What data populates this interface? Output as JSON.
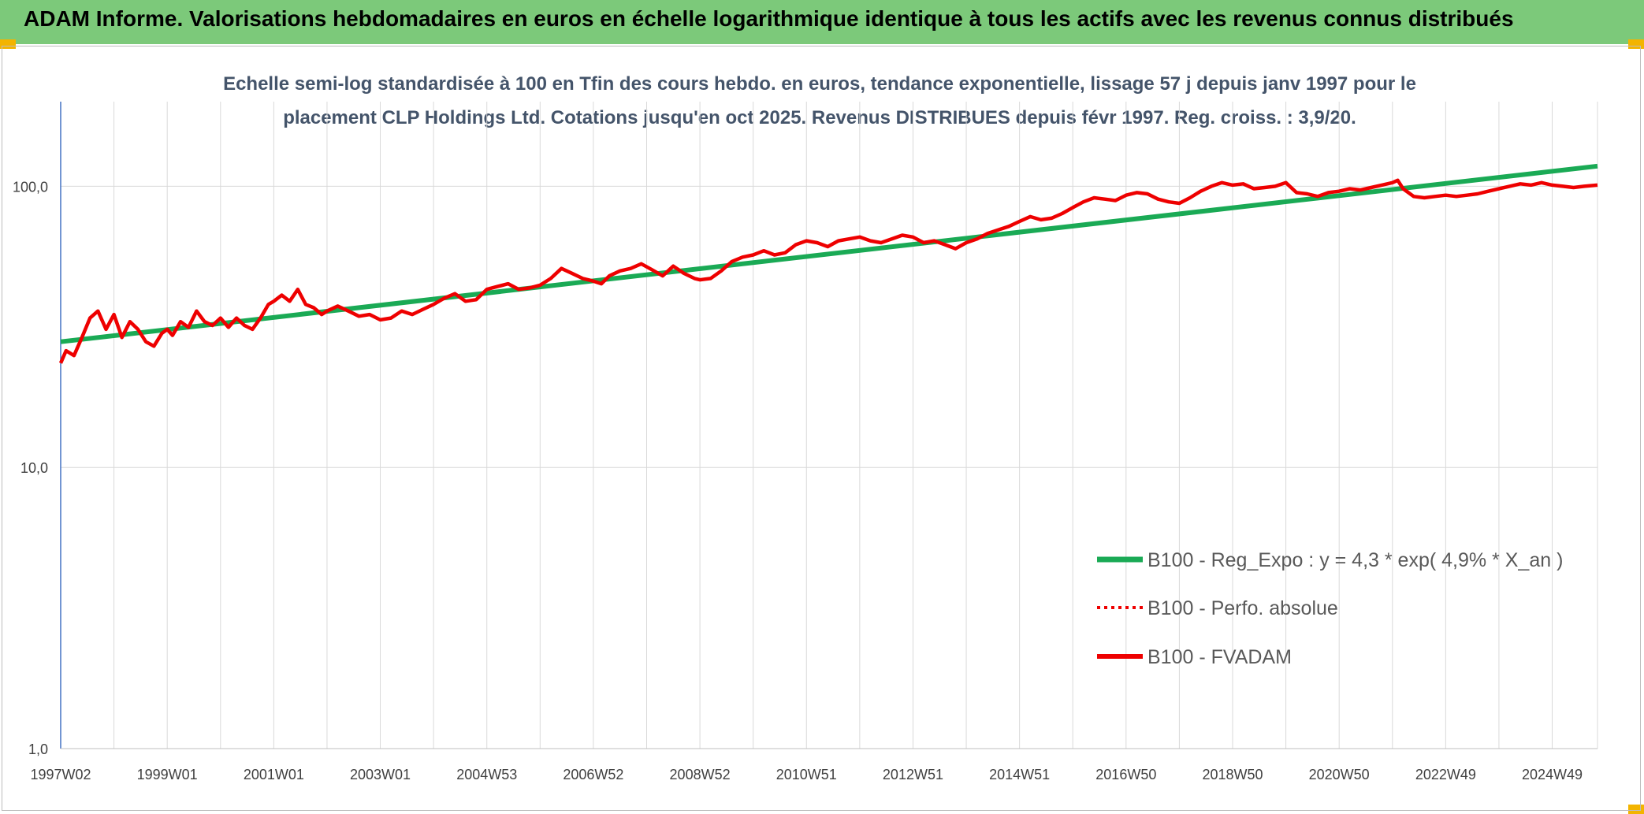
{
  "header": {
    "title": "ADAM Informe. Valorisations hebdomadaires en euros en échelle logarithmique identique à tous les actifs avec les revenus connus distribués"
  },
  "colors": {
    "header_bg": "#7cc97a",
    "accent": "#f3b400",
    "trend": "#1aaa55",
    "series": "#ee0000"
  },
  "chart_data": {
    "type": "line",
    "subtitle_line1": "Echelle semi-log standardisée à 100 en Tfin des cours hebdo. en euros, tendance exponentielle, lissage 57 j depuis janv 1997 pour le",
    "subtitle_line2": "placement CLP Holdings Ltd. Cotations jusqu'en oct 2025. Revenus DISTRIBUES depuis févr 1997. Reg. croiss. : 3,9/20.",
    "y_scale": "log",
    "ylim": [
      1,
      200
    ],
    "y_ticks": [
      {
        "value": 1,
        "label": "1,0"
      },
      {
        "value": 10,
        "label": "10,0"
      },
      {
        "value": 100,
        "label": "100,0"
      }
    ],
    "xlim": [
      1997.0,
      2025.85
    ],
    "x_ticks": [
      {
        "year": 1997.0,
        "label": "1997W02"
      },
      {
        "year": 1999.0,
        "label": "1999W01"
      },
      {
        "year": 2001.0,
        "label": "2001W01"
      },
      {
        "year": 2003.0,
        "label": "2003W01"
      },
      {
        "year": 2005.0,
        "label": "2004W53"
      },
      {
        "year": 2007.0,
        "label": "2006W52"
      },
      {
        "year": 2009.0,
        "label": "2008W52"
      },
      {
        "year": 2011.0,
        "label": "2010W51"
      },
      {
        "year": 2013.0,
        "label": "2012W51"
      },
      {
        "year": 2015.0,
        "label": "2014W51"
      },
      {
        "year": 2017.0,
        "label": "2016W50"
      },
      {
        "year": 2019.0,
        "label": "2018W50"
      },
      {
        "year": 2021.0,
        "label": "2020W50"
      },
      {
        "year": 2023.0,
        "label": "2022W49"
      },
      {
        "year": 2025.0,
        "label": "2024W49"
      }
    ],
    "legend_position": "bottom-right",
    "series": [
      {
        "name": "B100 - Reg_Expo : y = 4,3 * exp( 4,9% *  X_an )",
        "style": "solid-green",
        "x": [
          1997.0,
          2025.85
        ],
        "y": [
          28.0,
          118.0
        ]
      },
      {
        "name": "B100 - Perfo. absolue",
        "style": "dotted-red",
        "x": [],
        "y": []
      },
      {
        "name": "B100 - FVADAM",
        "style": "solid-red",
        "x": [
          1997.0,
          1997.1,
          1997.25,
          1997.4,
          1997.55,
          1997.7,
          1997.85,
          1998.0,
          1998.15,
          1998.3,
          1998.45,
          1998.6,
          1998.75,
          1998.9,
          1999.0,
          1999.1,
          1999.25,
          1999.4,
          1999.55,
          1999.7,
          1999.85,
          2000.0,
          2000.15,
          2000.3,
          2000.45,
          2000.6,
          2000.75,
          2000.9,
          2001.0,
          2001.15,
          2001.3,
          2001.45,
          2001.6,
          2001.75,
          2001.9,
          2002.0,
          2002.2,
          2002.4,
          2002.6,
          2002.8,
          2003.0,
          2003.2,
          2003.4,
          2003.6,
          2003.8,
          2004.0,
          2004.2,
          2004.4,
          2004.6,
          2004.8,
          2005.0,
          2005.2,
          2005.4,
          2005.6,
          2005.8,
          2006.0,
          2006.2,
          2006.4,
          2006.6,
          2006.8,
          2007.0,
          2007.15,
          2007.3,
          2007.5,
          2007.7,
          2007.9,
          2008.1,
          2008.3,
          2008.5,
          2008.7,
          2008.9,
          2009.0,
          2009.2,
          2009.4,
          2009.6,
          2009.8,
          2010.0,
          2010.2,
          2010.4,
          2010.6,
          2010.8,
          2011.0,
          2011.2,
          2011.4,
          2011.6,
          2011.8,
          2012.0,
          2012.2,
          2012.4,
          2012.6,
          2012.8,
          2013.0,
          2013.2,
          2013.4,
          2013.6,
          2013.8,
          2014.0,
          2014.2,
          2014.4,
          2014.6,
          2014.8,
          2015.0,
          2015.2,
          2015.4,
          2015.6,
          2015.8,
          2016.0,
          2016.2,
          2016.4,
          2016.6,
          2016.8,
          2017.0,
          2017.2,
          2017.4,
          2017.6,
          2017.8,
          2018.0,
          2018.2,
          2018.4,
          2018.6,
          2018.8,
          2019.0,
          2019.2,
          2019.4,
          2019.6,
          2019.8,
          2020.0,
          2020.2,
          2020.4,
          2020.6,
          2020.8,
          2021.0,
          2021.2,
          2021.4,
          2021.6,
          2021.8,
          2022.0,
          2022.1,
          2022.2,
          2022.4,
          2022.6,
          2022.8,
          2023.0,
          2023.2,
          2023.4,
          2023.6,
          2023.8,
          2024.0,
          2024.2,
          2024.4,
          2024.6,
          2024.8,
          2025.0,
          2025.2,
          2025.4,
          2025.6,
          2025.85
        ],
        "y": [
          23.5,
          26.0,
          25.0,
          29.0,
          34.0,
          36.0,
          31.0,
          35.0,
          29.0,
          33.0,
          31.0,
          28.0,
          27.0,
          30.0,
          31.0,
          29.5,
          33.0,
          31.5,
          36.0,
          33.0,
          32.0,
          34.0,
          31.5,
          34.0,
          32.0,
          31.0,
          34.0,
          38.0,
          39.0,
          41.0,
          39.0,
          43.0,
          38.0,
          37.0,
          35.0,
          36.0,
          37.5,
          36.0,
          34.5,
          35.0,
          33.5,
          34.0,
          36.0,
          35.0,
          36.5,
          38.0,
          40.0,
          41.5,
          39.0,
          39.5,
          43.0,
          44.0,
          45.0,
          43.0,
          43.5,
          44.5,
          47.0,
          51.0,
          49.0,
          47.0,
          46.0,
          45.0,
          48.0,
          50.0,
          51.0,
          53.0,
          50.5,
          48.0,
          52.0,
          49.0,
          47.0,
          46.5,
          47.0,
          50.0,
          54.0,
          56.0,
          57.0,
          59.0,
          57.0,
          58.0,
          62.0,
          64.0,
          63.0,
          61.0,
          64.0,
          65.0,
          66.0,
          64.0,
          63.0,
          65.0,
          67.0,
          66.0,
          63.0,
          64.0,
          62.0,
          60.0,
          63.0,
          65.0,
          68.0,
          70.0,
          72.0,
          75.0,
          78.0,
          76.0,
          77.0,
          80.0,
          84.0,
          88.0,
          91.0,
          90.0,
          89.0,
          93.0,
          95.0,
          94.0,
          90.0,
          88.0,
          87.0,
          91.0,
          96.0,
          100.0,
          103.0,
          101.0,
          102.0,
          98.0,
          99.0,
          100.0,
          103.0,
          95.0,
          94.0,
          92.0,
          95.0,
          96.0,
          98.0,
          97.0,
          99.0,
          101.0,
          103.0,
          105.0,
          98.0,
          92.0,
          91.0,
          92.0,
          93.0,
          92.0,
          93.0,
          94.0,
          96.0,
          98.0,
          100.0,
          102.0,
          101.0,
          103.0,
          101.0,
          100.0,
          99.0,
          100.0,
          101.0
        ]
      }
    ]
  }
}
